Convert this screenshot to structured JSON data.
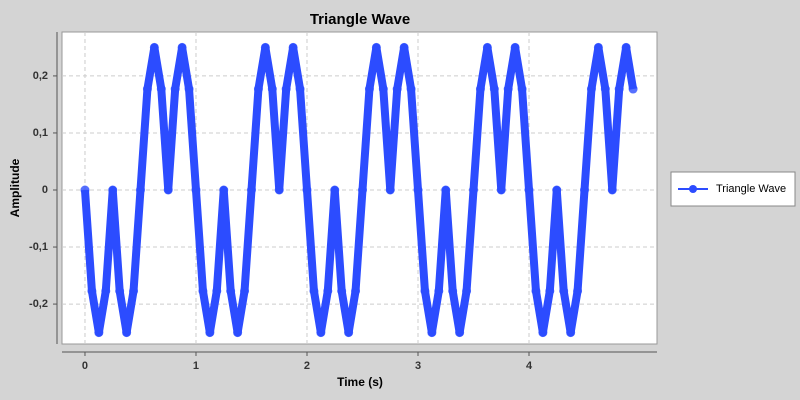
{
  "chart_data": {
    "type": "line",
    "title": "Triangle Wave",
    "x_label": "Time (s)",
    "y_label": "Amplitude",
    "x": [
      0,
      0.0625,
      0.125,
      0.1875,
      0.25,
      0.3125,
      0.375,
      0.4375,
      0.5,
      0.5625,
      0.625,
      0.6875,
      0.75,
      0.8125,
      0.875,
      0.9375,
      1,
      1.0625,
      1.125,
      1.1875,
      1.25,
      1.3125,
      1.375,
      1.4375,
      1.5,
      1.5625,
      1.625,
      1.6875,
      1.75,
      1.8125,
      1.875,
      1.9375,
      2,
      2.0625,
      2.125,
      2.1875,
      2.25,
      2.3125,
      2.375,
      2.4375,
      2.5,
      2.5625,
      2.625,
      2.6875,
      2.75,
      2.8125,
      2.875,
      2.9375,
      3,
      3.0625,
      3.125,
      3.1875,
      3.25,
      3.3125,
      3.375,
      3.4375,
      3.5,
      3.5625,
      3.625,
      3.6875,
      3.75,
      3.8125,
      3.875,
      3.9375,
      4,
      4.0625,
      4.125,
      4.1875,
      4.25,
      4.3125,
      4.375,
      4.4375,
      4.5,
      4.5625,
      4.625,
      4.6875,
      4.75,
      4.8125,
      4.875,
      4.9375
    ],
    "series": [
      {
        "name": "Triangle Wave",
        "color": "#2c4cff",
        "values": [
          0,
          -0.177,
          -0.25,
          -0.177,
          0,
          -0.177,
          -0.25,
          -0.177,
          0,
          0.177,
          0.25,
          0.177,
          0,
          0.177,
          0.25,
          0.177,
          0,
          -0.177,
          -0.25,
          -0.177,
          0,
          -0.177,
          -0.25,
          -0.177,
          0,
          0.177,
          0.25,
          0.177,
          0,
          0.177,
          0.25,
          0.177,
          0,
          -0.177,
          -0.25,
          -0.177,
          0,
          -0.177,
          -0.25,
          -0.177,
          0,
          0.177,
          0.25,
          0.177,
          0,
          0.177,
          0.25,
          0.177,
          0,
          -0.177,
          -0.25,
          -0.177,
          0,
          -0.177,
          -0.25,
          -0.177,
          0,
          0.177,
          0.25,
          0.177,
          0,
          0.177,
          0.25,
          0.177,
          0,
          -0.177,
          -0.25,
          -0.177,
          0,
          -0.177,
          -0.25,
          -0.177,
          0,
          0.177,
          0.25,
          0.177,
          0,
          0.177,
          0.25,
          0.177
        ]
      }
    ],
    "xlim": [
      -0.207,
      5.153
    ],
    "xticks": [
      0,
      1,
      2,
      3,
      4
    ],
    "ylim": [
      -0.27,
      0.277
    ],
    "yticks": [
      {
        "value": -0.2,
        "label": "-0,2"
      },
      {
        "value": -0.1,
        "label": "-0,1"
      },
      0,
      {
        "value": 0.1,
        "label": "0,1"
      },
      {
        "value": 0.2,
        "label": "0,2"
      }
    ],
    "grid": true,
    "legend_position": "right"
  }
}
